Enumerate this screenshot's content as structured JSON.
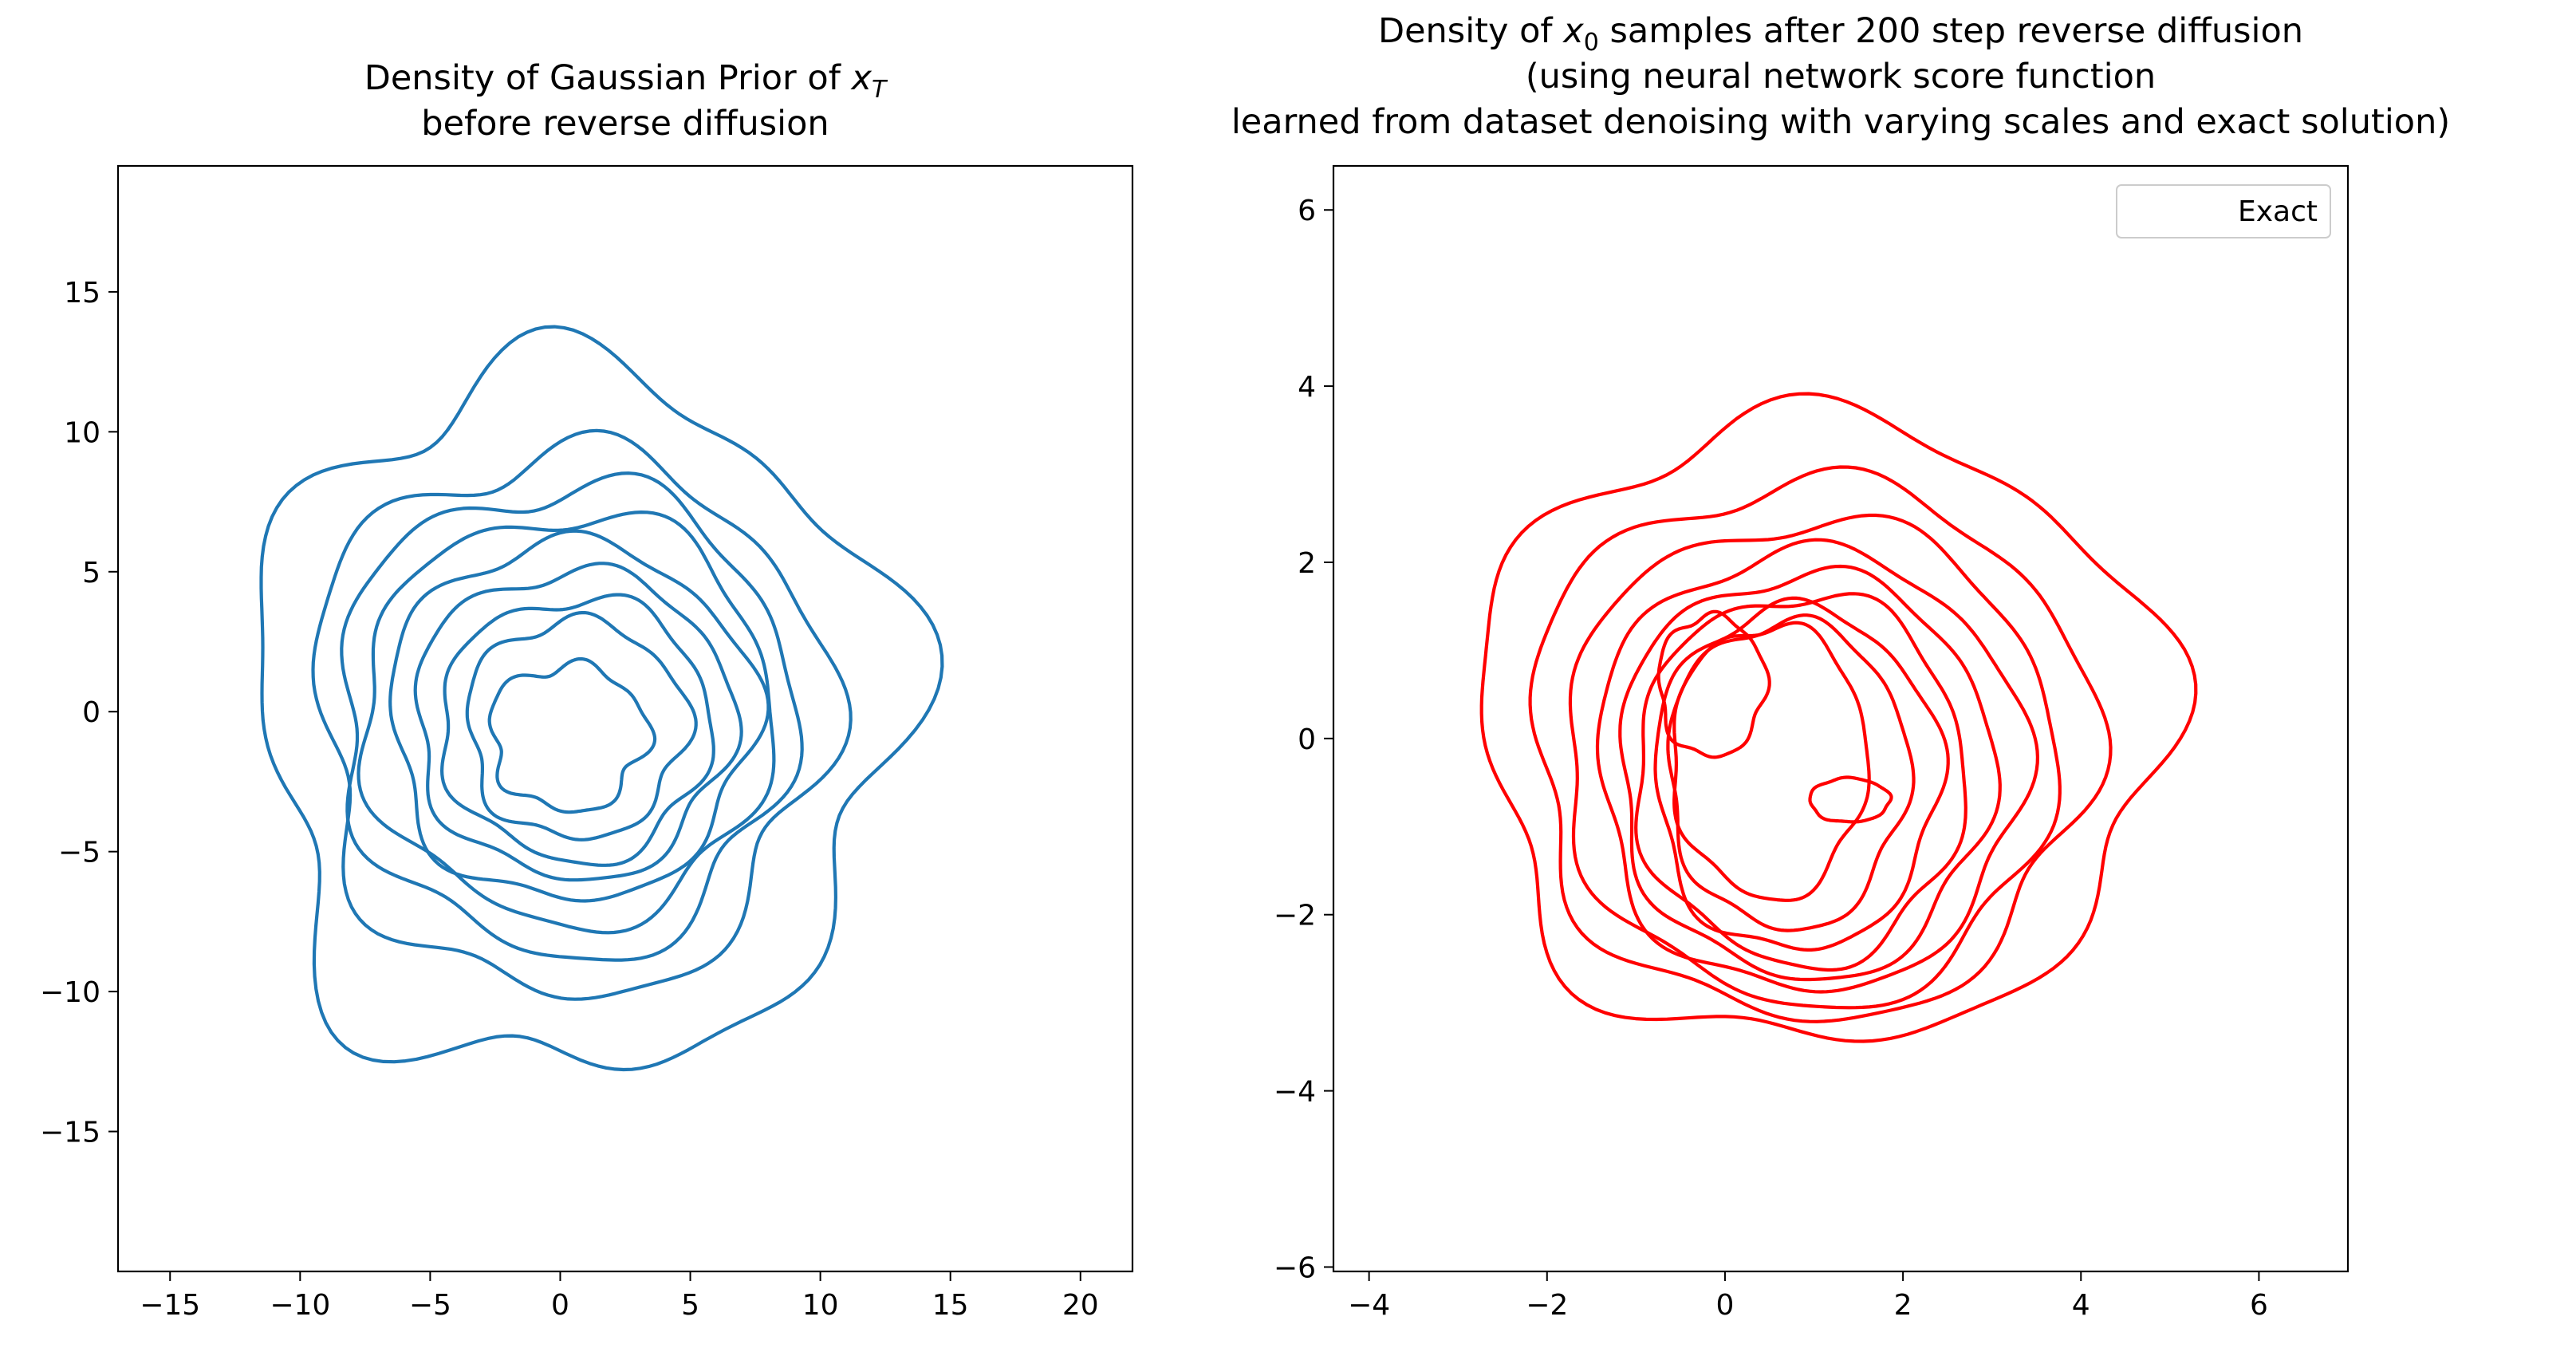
{
  "chart_data": [
    {
      "type": "contour",
      "title_lines": [
        "Density of Gaussian Prior of x_T",
        "before reverse diffusion"
      ],
      "xlim": [
        -17,
        22
      ],
      "ylim": [
        -20,
        19.5
      ],
      "xticks": [
        -15,
        -10,
        -5,
        0,
        5,
        10,
        15,
        20
      ],
      "yticks": [
        -15,
        -10,
        -5,
        0,
        5,
        10,
        15
      ],
      "xtick_labels": [
        "−15",
        "−10",
        "−5",
        "0",
        "5",
        "10",
        "15",
        "20"
      ],
      "ytick_labels": [
        "−15",
        "−10",
        "−5",
        "0",
        "5",
        "10",
        "15"
      ],
      "color": "#1f77b4",
      "grid": false,
      "levels": [
        {
          "cx": 0.5,
          "cy": -0.3,
          "a": 12.3,
          "b": 12.6,
          "w": 0.09,
          "p": 0.3
        },
        {
          "cx": 0.3,
          "cy": -0.3,
          "a": 9.8,
          "b": 9.7,
          "w": 0.07,
          "p": 1.1
        },
        {
          "cx": 0.2,
          "cy": -0.2,
          "a": 8.7,
          "b": 8.4,
          "w": 0.06,
          "p": 1.9
        },
        {
          "cx": 0.3,
          "cy": -0.2,
          "a": 7.9,
          "b": 7.3,
          "w": 0.05,
          "p": 2.5
        },
        {
          "cx": 0.4,
          "cy": -0.3,
          "a": 7.0,
          "b": 6.4,
          "w": 0.05,
          "p": 0.7
        },
        {
          "cx": 0.5,
          "cy": -0.4,
          "a": 6.1,
          "b": 5.5,
          "w": 0.05,
          "p": 1.5
        },
        {
          "cx": 0.6,
          "cy": -0.6,
          "a": 5.2,
          "b": 4.7,
          "w": 0.05,
          "p": 2.2
        },
        {
          "cx": 0.6,
          "cy": -0.6,
          "a": 4.2,
          "b": 3.9,
          "w": 0.06,
          "p": 0.9
        },
        {
          "cx": 0.3,
          "cy": -0.9,
          "a": 3.0,
          "b": 2.6,
          "w": 0.08,
          "p": 1.3
        }
      ]
    },
    {
      "type": "contour",
      "title_lines": [
        "Density of x_0 samples after 200 step reverse diffusion",
        "(using neural network score function",
        "learned from dataset denoising with varying scales and exact solution)"
      ],
      "xlim": [
        -4.4,
        7.0
      ],
      "ylim": [
        -6.05,
        6.5
      ],
      "xticks": [
        -4,
        -2,
        0,
        2,
        4,
        6
      ],
      "yticks": [
        -6,
        -4,
        -2,
        0,
        2,
        4,
        6
      ],
      "xtick_labels": [
        "−4",
        "−2",
        "0",
        "2",
        "4",
        "6"
      ],
      "ytick_labels": [
        "−6",
        "−4",
        "−2",
        "0",
        "2",
        "4",
        "6"
      ],
      "color": "#ff0000",
      "grid": false,
      "legend": {
        "position": "upper right",
        "entries": [
          "Exact"
        ]
      },
      "levels": [
        {
          "cx": 1.05,
          "cy": 0.1,
          "a": 3.85,
          "b": 3.55,
          "w": 0.06,
          "p": 0.4
        },
        {
          "cx": 0.95,
          "cy": -0.1,
          "a": 3.15,
          "b": 3.05,
          "w": 0.05,
          "p": 1.2
        },
        {
          "cx": 0.95,
          "cy": -0.25,
          "a": 2.75,
          "b": 2.75,
          "w": 0.04,
          "p": 2.0
        },
        {
          "cx": 0.95,
          "cy": -0.35,
          "a": 2.4,
          "b": 2.5,
          "w": 0.04,
          "p": 0.8
        },
        {
          "cx": 0.9,
          "cy": -0.4,
          "a": 2.1,
          "b": 2.3,
          "w": 0.04,
          "p": 1.6
        },
        {
          "cx": 0.85,
          "cy": -0.45,
          "a": 1.85,
          "b": 2.1,
          "w": 0.04,
          "p": 2.4
        },
        {
          "cx": 0.8,
          "cy": -0.45,
          "a": 1.6,
          "b": 1.95,
          "w": 0.04,
          "p": 0.5
        },
        {
          "cx": 0.7,
          "cy": -0.4,
          "a": 1.35,
          "b": 1.75,
          "w": 0.04,
          "p": 1.4
        },
        {
          "cx": 0.5,
          "cy": -0.25,
          "a": 1.1,
          "b": 1.55,
          "w": 0.04,
          "p": 2.1
        },
        {
          "cx": -0.15,
          "cy": 0.6,
          "a": 0.6,
          "b": 0.8,
          "w": 0.05,
          "p": 0.9
        },
        {
          "cx": 1.4,
          "cy": -0.7,
          "a": 0.45,
          "b": 0.25,
          "w": 0.03,
          "p": 0.2
        }
      ]
    }
  ]
}
